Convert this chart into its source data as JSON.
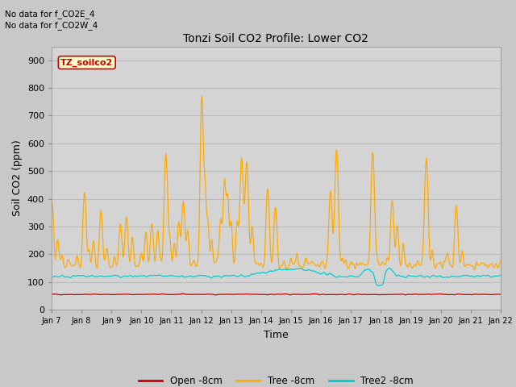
{
  "title": "Tonzi Soil CO2 Profile: Lower CO2",
  "xlabel": "Time",
  "ylabel": "Soil CO2 (ppm)",
  "ylim": [
    0,
    950
  ],
  "yticks": [
    0,
    100,
    200,
    300,
    400,
    500,
    600,
    700,
    800,
    900
  ],
  "no_data_text1": "No data for f_CO2E_4",
  "no_data_text2": "No data for f_CO2W_4",
  "site_label": "TZ_soilco2",
  "legend_labels": [
    "Open -8cm",
    "Tree -8cm",
    "Tree2 -8cm"
  ],
  "line_colors": [
    "#cc0000",
    "#ffaa00",
    "#00cccc"
  ],
  "fig_bg_color": "#c8c8c8",
  "plot_bg_color": "#d4d4d4",
  "grid_color": "#bbbbbb",
  "n_points": 720,
  "x_start": 7,
  "x_end": 22,
  "xtick_positions": [
    7,
    8,
    9,
    10,
    11,
    12,
    13,
    14,
    15,
    16,
    17,
    18,
    19,
    20,
    21,
    22
  ],
  "xtick_labels": [
    "Jan 7",
    "Jan 8",
    "Jan 9",
    "Jan 10",
    "Jan 11",
    "Jan 12",
    "Jan 13",
    "Jan 14",
    "Jan 15",
    "Jan 16",
    "Jan 17",
    "Jan 18",
    "Jan 19",
    "Jan 20",
    "Jan 21",
    "Jan 22"
  ]
}
